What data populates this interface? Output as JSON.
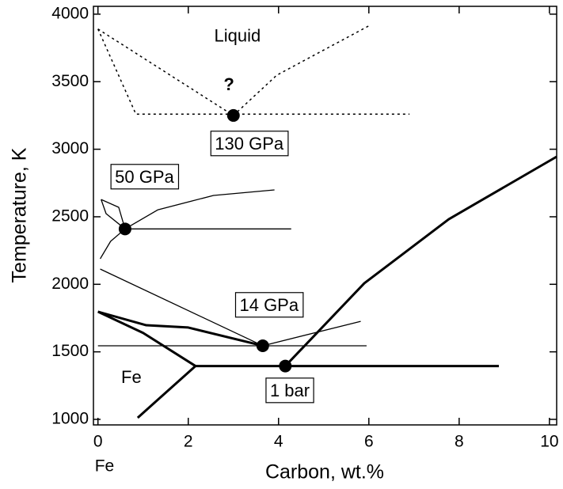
{
  "chart_data": {
    "type": "line",
    "xlabel": "Carbon, wt.%",
    "ylabel": "Temperature, K",
    "x_origin_note": "Fe",
    "xlim": [
      -0.1,
      10.16
    ],
    "ylim": [
      959,
      4058
    ],
    "xticks": [
      0,
      2,
      4,
      6,
      8,
      10
    ],
    "yticks": [
      1000,
      1500,
      2000,
      2500,
      3000,
      3500,
      4000
    ],
    "series": [
      {
        "color": "#000000",
        "width": 1.5,
        "dash": true,
        "x": [
          0,
          0.84,
          6.9
        ],
        "y": [
          3890,
          3260,
          3260
        ]
      },
      {
        "color": "#000000",
        "width": 1.5,
        "dash": true,
        "x": [
          0,
          3.0
        ],
        "y": [
          3890,
          3250
        ]
      },
      {
        "color": "#000000",
        "width": 1.5,
        "dash": true,
        "x": [
          3.0,
          3.96,
          6.02
        ],
        "y": [
          3250,
          3548,
          3917
        ]
      },
      {
        "color": "#000000",
        "width": 1.3,
        "dash": false,
        "x": [
          0.07,
          0.46,
          0.6
        ],
        "y": [
          2628,
          2570,
          2410
        ]
      },
      {
        "color": "#000000",
        "width": 1.3,
        "dash": false,
        "x": [
          0.07,
          0.18,
          0.6
        ],
        "y": [
          2628,
          2523,
          2410
        ]
      },
      {
        "color": "#000000",
        "width": 1.3,
        "dash": false,
        "x": [
          0.6,
          1.33,
          2.56,
          3.91
        ],
        "y": [
          2410,
          2552,
          2658,
          2699
        ]
      },
      {
        "color": "#000000",
        "width": 1.3,
        "dash": false,
        "x": [
          0.6,
          4.28
        ],
        "y": [
          2410,
          2410
        ]
      },
      {
        "color": "#000000",
        "width": 1.3,
        "dash": false,
        "x": [
          0.6,
          0.28,
          0.05
        ],
        "y": [
          2410,
          2318,
          2189
        ]
      },
      {
        "color": "#000000",
        "width": 1.3,
        "dash": false,
        "x": [
          0.05,
          3.65
        ],
        "y": [
          2113,
          1545
        ]
      },
      {
        "color": "#000000",
        "width": 1.3,
        "dash": false,
        "x": [
          3.65,
          5.82
        ],
        "y": [
          1545,
          1726
        ]
      },
      {
        "color": "#000000",
        "width": 1.3,
        "dash": false,
        "x": [
          0,
          5.95
        ],
        "y": [
          1545,
          1545
        ]
      },
      {
        "color": "#000000",
        "width": 3,
        "dash": false,
        "x": [
          0,
          1.07,
          2.0,
          3.65
        ],
        "y": [
          1797,
          1697,
          1680,
          1545
        ]
      },
      {
        "color": "#000000",
        "width": 3,
        "dash": false,
        "x": [
          0,
          1.0,
          2.16
        ],
        "y": [
          1797,
          1640,
          1395
        ]
      },
      {
        "color": "#000000",
        "width": 3,
        "dash": false,
        "x": [
          0.88,
          2.16,
          8.88
        ],
        "y": [
          1012,
          1395,
          1395
        ]
      },
      {
        "color": "#000000",
        "width": 3,
        "dash": false,
        "x": [
          4.15,
          5.9,
          7.77,
          10.16
        ],
        "y": [
          1395,
          2008,
          2482,
          2945
        ]
      }
    ],
    "points": {
      "color": "#000000",
      "x": [
        3.0,
        0.6,
        3.65,
        4.15
      ],
      "y": [
        3250,
        2410,
        1545,
        1395
      ]
    },
    "annotations": [
      {
        "text": "Liquid",
        "x": 3.09,
        "y": 3830,
        "boxed": false
      },
      {
        "text": "?",
        "x": 2.9,
        "y": 3472,
        "boxed": false,
        "bold": true
      },
      {
        "text": "130 GPa",
        "x": 3.35,
        "y": 3033,
        "boxed": true
      },
      {
        "text": "50 GPa",
        "x": 1.03,
        "y": 2787,
        "boxed": true
      },
      {
        "text": "14 GPa",
        "x": 3.79,
        "y": 1838,
        "boxed": true
      },
      {
        "text": "1 bar",
        "x": 4.25,
        "y": 1205,
        "boxed": true
      },
      {
        "text": "Fe",
        "x": 0.74,
        "y": 1305,
        "boxed": false
      }
    ]
  }
}
